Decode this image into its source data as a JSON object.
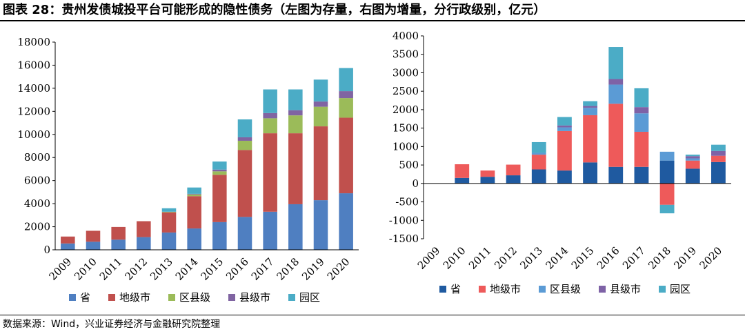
{
  "title": "图表 28：贵州发债城投平台可能形成的隐性债务（左图为存量，右图为增量，分行政级别，亿元）",
  "source": "数据来源：Wind，兴业证券经济与金融研究院整理",
  "colors": {
    "省": "#4f7fc1",
    "地级市": "#c0504d",
    "区县级": "#9bbb59",
    "县级市": "#8064a2",
    "园区": "#4bacc6"
  },
  "colors_right": {
    "省": "#1f5aa0",
    "地级市": "#ee5a5a",
    "区县级": "#5b9bd5",
    "县级市": "#7e62a6",
    "园区": "#4bacc6"
  },
  "chart_data": [
    {
      "type": "bar",
      "stacked": true,
      "title": "存量",
      "categories": [
        "2009",
        "2010",
        "2011",
        "2012",
        "2013",
        "2014",
        "2015",
        "2016",
        "2017",
        "2018",
        "2019",
        "2020"
      ],
      "series": [
        {
          "name": "省",
          "values": [
            550,
            700,
            880,
            1100,
            1500,
            1850,
            2400,
            2850,
            3300,
            3950,
            4300,
            4900
          ]
        },
        {
          "name": "地级市",
          "values": [
            600,
            950,
            1100,
            1380,
            1750,
            2800,
            4100,
            5800,
            6800,
            6150,
            6400,
            6550
          ]
        },
        {
          "name": "区县级",
          "values": [
            0,
            0,
            0,
            0,
            50,
            150,
            300,
            800,
            1300,
            1550,
            1700,
            1700
          ]
        },
        {
          "name": "县级市",
          "values": [
            0,
            0,
            0,
            0,
            0,
            50,
            150,
            300,
            450,
            450,
            450,
            600
          ]
        },
        {
          "name": "园区",
          "values": [
            0,
            0,
            0,
            0,
            300,
            550,
            700,
            1550,
            2050,
            1800,
            1900,
            2000
          ]
        }
      ],
      "yticks": [
        "0",
        "2000",
        "4000",
        "6000",
        "8000",
        "10000",
        "12000",
        "14000",
        "16000",
        "18000"
      ],
      "ylim": [
        0,
        18000
      ],
      "legend": "bottom"
    },
    {
      "type": "bar",
      "stacked": true,
      "title": "增量",
      "categories": [
        "2009",
        "2010",
        "2011",
        "2012",
        "2013",
        "2014",
        "2015",
        "2016",
        "2017",
        "2018",
        "2019",
        "2020"
      ],
      "series": [
        {
          "name": "省",
          "values": [
            0,
            150,
            180,
            220,
            380,
            350,
            570,
            450,
            450,
            620,
            400,
            580
          ]
        },
        {
          "name": "地级市",
          "values": [
            0,
            370,
            170,
            290,
            400,
            1070,
            1280,
            1710,
            950,
            -580,
            220,
            170
          ]
        },
        {
          "name": "区县级",
          "values": [
            0,
            0,
            0,
            0,
            50,
            100,
            200,
            520,
            500,
            240,
            60,
            0
          ]
        },
        {
          "name": "县级市",
          "values": [
            0,
            0,
            0,
            0,
            0,
            50,
            50,
            150,
            170,
            0,
            60,
            130
          ]
        },
        {
          "name": "园区",
          "values": [
            0,
            0,
            0,
            0,
            290,
            230,
            130,
            870,
            510,
            -230,
            40,
            170
          ]
        }
      ],
      "yticks": [
        "-1500",
        "-1000",
        "-500",
        "0",
        "500",
        "1000",
        "1500",
        "2000",
        "2500",
        "3000",
        "3500",
        "4000"
      ],
      "ylim": [
        -1500,
        4000
      ],
      "legend": "bottom"
    }
  ]
}
